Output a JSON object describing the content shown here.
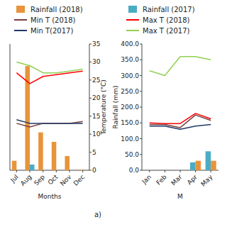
{
  "chart_data": [
    {
      "type": "bar",
      "categories": [
        "Jul",
        "Aug",
        "Sep",
        "Oct",
        "Nov",
        "Dec"
      ],
      "xlabel": "Months",
      "y2label": "Temperature (°C)",
      "annotation": "a)",
      "ylim": [
        0,
        400
      ],
      "y2lim": [
        0,
        35
      ],
      "y2ticks": [
        0,
        5,
        10,
        15,
        20,
        25,
        30,
        35
      ],
      "legend": "top",
      "series": [
        {
          "name": "Rainfall (2018)",
          "color": "#E8943A",
          "values": [
            30,
            330,
            120,
            90,
            45,
            2
          ]
        },
        {
          "name": "Rainfall (2017)",
          "color": "#4BACC6",
          "values": [
            0,
            18,
            0,
            0,
            0,
            0
          ]
        },
        {
          "name": "Min T (2018)",
          "type": "line",
          "axis": "y2",
          "color": "#7B3F3F",
          "values": [
            13,
            12,
            13,
            13,
            13,
            13.5
          ]
        },
        {
          "name": "Max T (2018)",
          "type": "line",
          "axis": "y2",
          "color": "#FF0000",
          "values": [
            27,
            24,
            26,
            26.5,
            27,
            27.5
          ]
        },
        {
          "name": "Min T(2017)",
          "type": "line",
          "axis": "y2",
          "color": "#1F3864",
          "values": [
            14,
            13,
            13,
            13,
            13,
            13
          ]
        },
        {
          "name": "Max T (2017)",
          "type": "line",
          "axis": "y2",
          "color": "#92D050",
          "values": [
            30,
            29,
            27,
            27,
            27.5,
            28
          ]
        }
      ]
    },
    {
      "type": "bar",
      "categories": [
        "Jan",
        "Feb",
        "Mar",
        "Apr",
        "May"
      ],
      "xlabel": "M",
      "ylabel": "Rainfall (mm)",
      "ylim": [
        0,
        400
      ],
      "yticks": [
        {
          "value": 0,
          "label": "0.0"
        },
        {
          "value": 50,
          "label": "50.0"
        },
        {
          "value": 100,
          "label": "100.0"
        },
        {
          "value": 150,
          "label": "150.0"
        },
        {
          "value": 200,
          "label": "200.0"
        },
        {
          "value": 250,
          "label": "250.0"
        },
        {
          "value": 300,
          "label": "300.0"
        },
        {
          "value": 350,
          "label": "350.0"
        },
        {
          "value": 400,
          "label": "400.0"
        }
      ],
      "series": [
        {
          "color": "#4BACC6",
          "values": [
            0,
            0,
            0,
            25,
            60
          ]
        },
        {
          "color": "#E8943A",
          "values": [
            0,
            0,
            0,
            30,
            30
          ]
        },
        {
          "type": "line",
          "color": "#92D050",
          "values": [
            315,
            300,
            360,
            360,
            350
          ]
        },
        {
          "type": "line",
          "color": "#FF0000",
          "values": [
            150,
            148,
            148,
            180,
            163
          ]
        },
        {
          "type": "line",
          "color": "#1F3864",
          "values": [
            140,
            140,
            130,
            140,
            145
          ]
        },
        {
          "type": "line",
          "color": "#7B3F3F",
          "values": [
            145,
            145,
            135,
            175,
            158
          ]
        }
      ]
    }
  ]
}
